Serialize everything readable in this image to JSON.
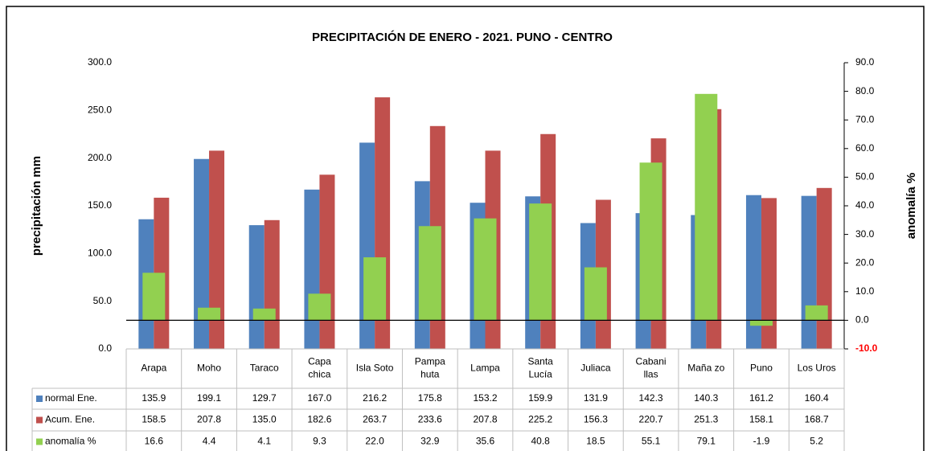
{
  "chart_data": {
    "type": "bar",
    "title": "PRECIPITACIÓN DE ENERO - 2021. PUNO - CENTRO",
    "y_label": "precipitación mm",
    "y2_label": "anomalía %",
    "categories": [
      "Arapa",
      "Moho",
      "Taraco",
      "Capa\nchica",
      "Isla Soto",
      "Pampa\nhuta",
      "Lampa",
      "Santa\nLucía",
      "Juliaca",
      "Cabani\nllas",
      "Maña zo",
      "Puno",
      "Los Uros"
    ],
    "series": [
      {
        "name": "normal Ene.",
        "color": "#4f81bd",
        "values": [
          135.9,
          199.1,
          129.7,
          167.0,
          216.2,
          175.8,
          153.2,
          159.9,
          131.9,
          142.3,
          140.3,
          161.2,
          160.4
        ],
        "value_labels": [
          "135.9",
          "199.1",
          "129.7",
          "167.0",
          "216.2",
          "175.8",
          "153.2",
          "159.9",
          "131.9",
          "142.3",
          "140.3",
          "161.2",
          "160.4"
        ]
      },
      {
        "name": "Acum. Ene.",
        "color": "#c0504d",
        "values": [
          158.5,
          207.8,
          135.0,
          182.6,
          263.7,
          233.6,
          207.8,
          225.2,
          156.3,
          220.7,
          251.3,
          158.1,
          168.7
        ],
        "value_labels": [
          "158.5",
          "207.8",
          "135.0",
          "182.6",
          "263.7",
          "233.6",
          "207.8",
          "225.2",
          "156.3",
          "220.7",
          "251.3",
          "158.1",
          "168.7"
        ]
      },
      {
        "name": "anomalía %",
        "color": "#92d050",
        "axis": "y2",
        "values": [
          16.6,
          4.4,
          4.1,
          9.3,
          22.0,
          32.9,
          35.6,
          40.8,
          18.5,
          55.1,
          79.1,
          -1.9,
          5.2
        ],
        "value_labels": [
          "16.6",
          "4.4",
          "4.1",
          "9.3",
          "22.0",
          "32.9",
          "35.6",
          "40.8",
          "18.5",
          "55.1",
          "79.1",
          "-1.9",
          "5.2"
        ]
      }
    ],
    "ylim": [
      0,
      300
    ],
    "yticks": [
      {
        "value": 0,
        "label": "0.0"
      },
      {
        "value": 50,
        "label": "50.0"
      },
      {
        "value": 100,
        "label": "100.0"
      },
      {
        "value": 150,
        "label": "150.0"
      },
      {
        "value": 200,
        "label": "200.0"
      },
      {
        "value": 250,
        "label": "250.0"
      },
      {
        "value": 300,
        "label": "300.0"
      }
    ],
    "y2lim": [
      -10,
      90
    ],
    "y2ticks": [
      {
        "value": -10,
        "label": "-10.0"
      },
      {
        "value": 0,
        "label": "0.0"
      },
      {
        "value": 10,
        "label": "10.0"
      },
      {
        "value": 20,
        "label": "20.0"
      },
      {
        "value": 30,
        "label": "30.0"
      },
      {
        "value": 40,
        "label": "40.0"
      },
      {
        "value": 50,
        "label": "50.0"
      },
      {
        "value": 60,
        "label": "60.0"
      },
      {
        "value": 70,
        "label": "70.0"
      },
      {
        "value": 80,
        "label": "80.0"
      },
      {
        "value": 90,
        "label": "90.0"
      }
    ],
    "negative_tick_color": "#ff0000"
  }
}
